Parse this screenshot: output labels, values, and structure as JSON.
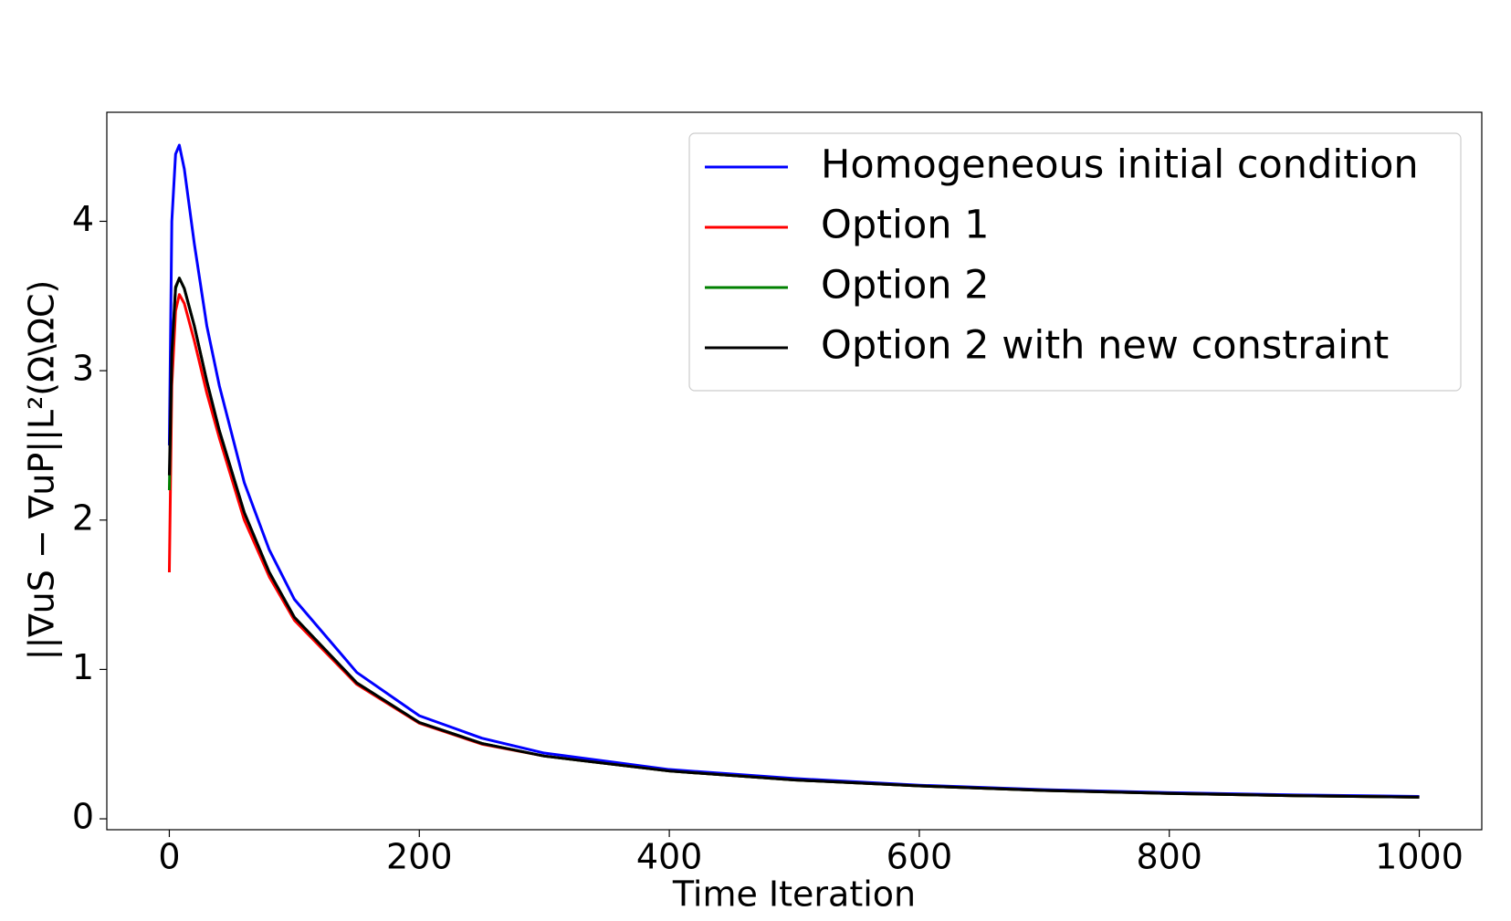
{
  "chart_data": {
    "type": "line",
    "x_label": "Time Iteration",
    "y_label": "||∇uS − ∇uP||L²(Ω\\ΩC)",
    "x": [
      0,
      2,
      5,
      8,
      12,
      20,
      30,
      40,
      60,
      80,
      100,
      150,
      200,
      250,
      300,
      400,
      500,
      600,
      700,
      800,
      900,
      1000
    ],
    "series": [
      {
        "name": "Homogeneous initial condition",
        "color": "#0000ff",
        "values": [
          2.5,
          4.0,
          4.45,
          4.51,
          4.35,
          3.85,
          3.3,
          2.9,
          2.25,
          1.8,
          1.47,
          0.98,
          0.69,
          0.54,
          0.44,
          0.33,
          0.27,
          0.225,
          0.195,
          0.175,
          0.16,
          0.15
        ]
      },
      {
        "name": "Option 1",
        "color": "#ff0000",
        "values": [
          1.65,
          2.9,
          3.4,
          3.51,
          3.45,
          3.2,
          2.85,
          2.55,
          2.0,
          1.62,
          1.33,
          0.9,
          0.64,
          0.5,
          0.42,
          0.32,
          0.26,
          0.22,
          0.19,
          0.17,
          0.155,
          0.145
        ]
      },
      {
        "name": "Option 2",
        "color": "#008000",
        "values": [
          2.2,
          3.1,
          3.55,
          3.62,
          3.55,
          3.3,
          2.93,
          2.6,
          2.05,
          1.65,
          1.35,
          0.91,
          0.645,
          0.505,
          0.42,
          0.32,
          0.26,
          0.22,
          0.19,
          0.17,
          0.155,
          0.145
        ]
      },
      {
        "name": "Option 2 with new constraint",
        "color": "#000000",
        "values": [
          2.3,
          3.12,
          3.56,
          3.62,
          3.55,
          3.3,
          2.93,
          2.6,
          2.05,
          1.65,
          1.35,
          0.91,
          0.645,
          0.505,
          0.42,
          0.32,
          0.26,
          0.22,
          0.19,
          0.17,
          0.155,
          0.145
        ]
      }
    ],
    "xlim": [
      -50,
      1050
    ],
    "ylim": [
      -0.073,
      4.73
    ],
    "xticks": [
      0,
      200,
      400,
      600,
      800,
      1000
    ],
    "yticks": [
      0,
      1,
      2,
      3,
      4
    ],
    "legend": "upper right",
    "grid": false
  }
}
